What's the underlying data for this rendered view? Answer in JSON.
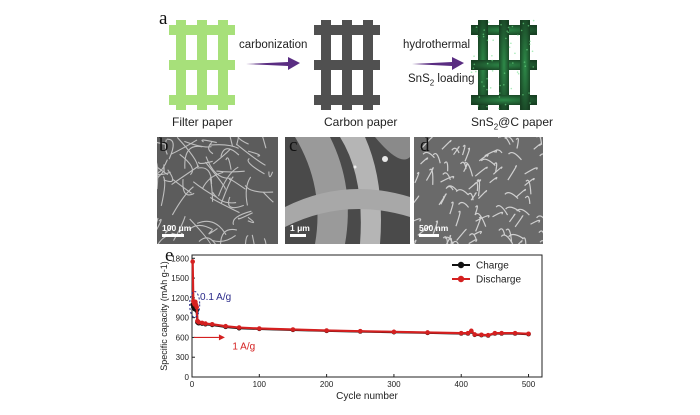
{
  "panels": {
    "a": "a",
    "b": "b",
    "c": "c",
    "d": "d",
    "e": "e"
  },
  "schematic": {
    "captions": [
      "Filter paper",
      "Carbon paper",
      "SnS2@C paper"
    ],
    "arrow1_label": "carbonization",
    "arrow2_label_line1": "hydrothermal",
    "arrow2_label_line2": "SnS2 loading",
    "colors": {
      "filter": "#a7e07a",
      "carbon": "#505050",
      "sns2c": "#1f6b36",
      "arrow": "#5a2d82"
    }
  },
  "sem": {
    "b_scale": "100 μm",
    "c_scale": "1 μm",
    "d_scale": "500 nm"
  },
  "chart_data": {
    "type": "line",
    "title": "",
    "xlabel": "Cycle number",
    "ylabel": "Specific capacity (mAh g-1)",
    "xlim": [
      0,
      520
    ],
    "ylim": [
      0,
      1850
    ],
    "xticks": [
      0,
      100,
      200,
      300,
      400,
      500
    ],
    "yticks": [
      0,
      300,
      600,
      900,
      1200,
      1500,
      1800
    ],
    "legend_position": "top-right",
    "series": [
      {
        "name": "Charge",
        "color": "#111111",
        "x": [
          1,
          2,
          3,
          4,
          5,
          6,
          7,
          8,
          9,
          10,
          15,
          20,
          30,
          50,
          70,
          100,
          150,
          200,
          250,
          300,
          350,
          400,
          410,
          415,
          420,
          430,
          440,
          450,
          460,
          480,
          500
        ],
        "y": [
          1100,
          1060,
          1050,
          1030,
          1120,
          1040,
          1010,
          830,
          820,
          815,
          810,
          800,
          790,
          760,
          740,
          730,
          715,
          700,
          690,
          680,
          670,
          660,
          660,
          690,
          640,
          635,
          630,
          660,
          660,
          660,
          650
        ]
      },
      {
        "name": "Discharge",
        "color": "#d42020",
        "x": [
          1,
          2,
          3,
          4,
          5,
          6,
          7,
          8,
          9,
          10,
          15,
          20,
          30,
          50,
          70,
          100,
          150,
          200,
          250,
          300,
          350,
          400,
          410,
          415,
          420,
          430,
          440,
          450,
          460,
          480,
          500
        ],
        "y": [
          1750,
          1150,
          1120,
          1100,
          1140,
          1090,
          1060,
          850,
          840,
          830,
          820,
          810,
          800,
          770,
          750,
          735,
          720,
          705,
          695,
          685,
          675,
          665,
          665,
          700,
          645,
          640,
          635,
          665,
          665,
          665,
          655
        ]
      }
    ],
    "annotations": [
      {
        "text": "0.1 A/g",
        "x": 3,
        "y": 1120,
        "color": "#2a2a8a"
      },
      {
        "text": "1 A/g",
        "x": 60,
        "y": 420,
        "color": "#d42020"
      }
    ]
  }
}
